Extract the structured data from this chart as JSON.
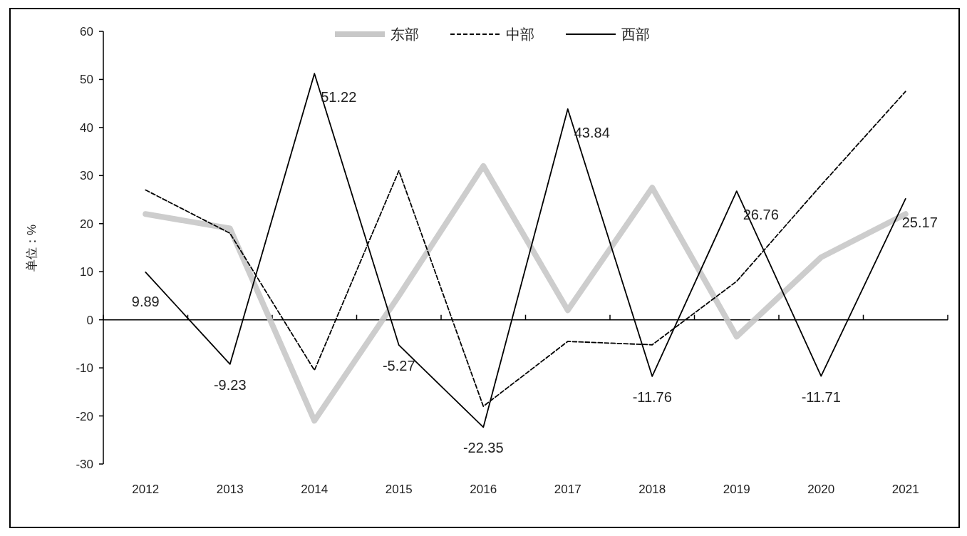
{
  "chart_data": {
    "type": "line",
    "ylabel": "单位：%",
    "categories": [
      "2012",
      "2013",
      "2014",
      "2015",
      "2016",
      "2017",
      "2018",
      "2019",
      "2020",
      "2021"
    ],
    "ylim": [
      -30,
      60
    ],
    "yticks": [
      -30,
      -20,
      -10,
      0,
      10,
      20,
      30,
      40,
      50,
      60
    ],
    "legend": "top",
    "marker": "none",
    "series": [
      {
        "name": "东部",
        "color": "#c8c8c8",
        "line_style": "solid",
        "values": [
          22,
          19,
          -21,
          5,
          32,
          2,
          27.5,
          -3.5,
          13,
          22
        ]
      },
      {
        "name": "中部",
        "color": "#000000",
        "line_style": "dashed",
        "values": [
          27,
          18,
          -10.5,
          31,
          -18,
          -4.5,
          -5.2,
          8,
          28,
          47.5
        ]
      },
      {
        "name": "西部",
        "color": "#000000",
        "line_style": "solid",
        "values": [
          9.89,
          -9.23,
          51.22,
          -5.27,
          -22.35,
          43.84,
          -11.76,
          26.76,
          -11.71,
          25.17
        ],
        "value_labels": [
          "9.89",
          "-9.23",
          "51.22",
          "-5.27",
          "-22.35",
          "43.84",
          "-11.76",
          "26.76",
          "-11.71",
          "25.17"
        ]
      }
    ]
  }
}
